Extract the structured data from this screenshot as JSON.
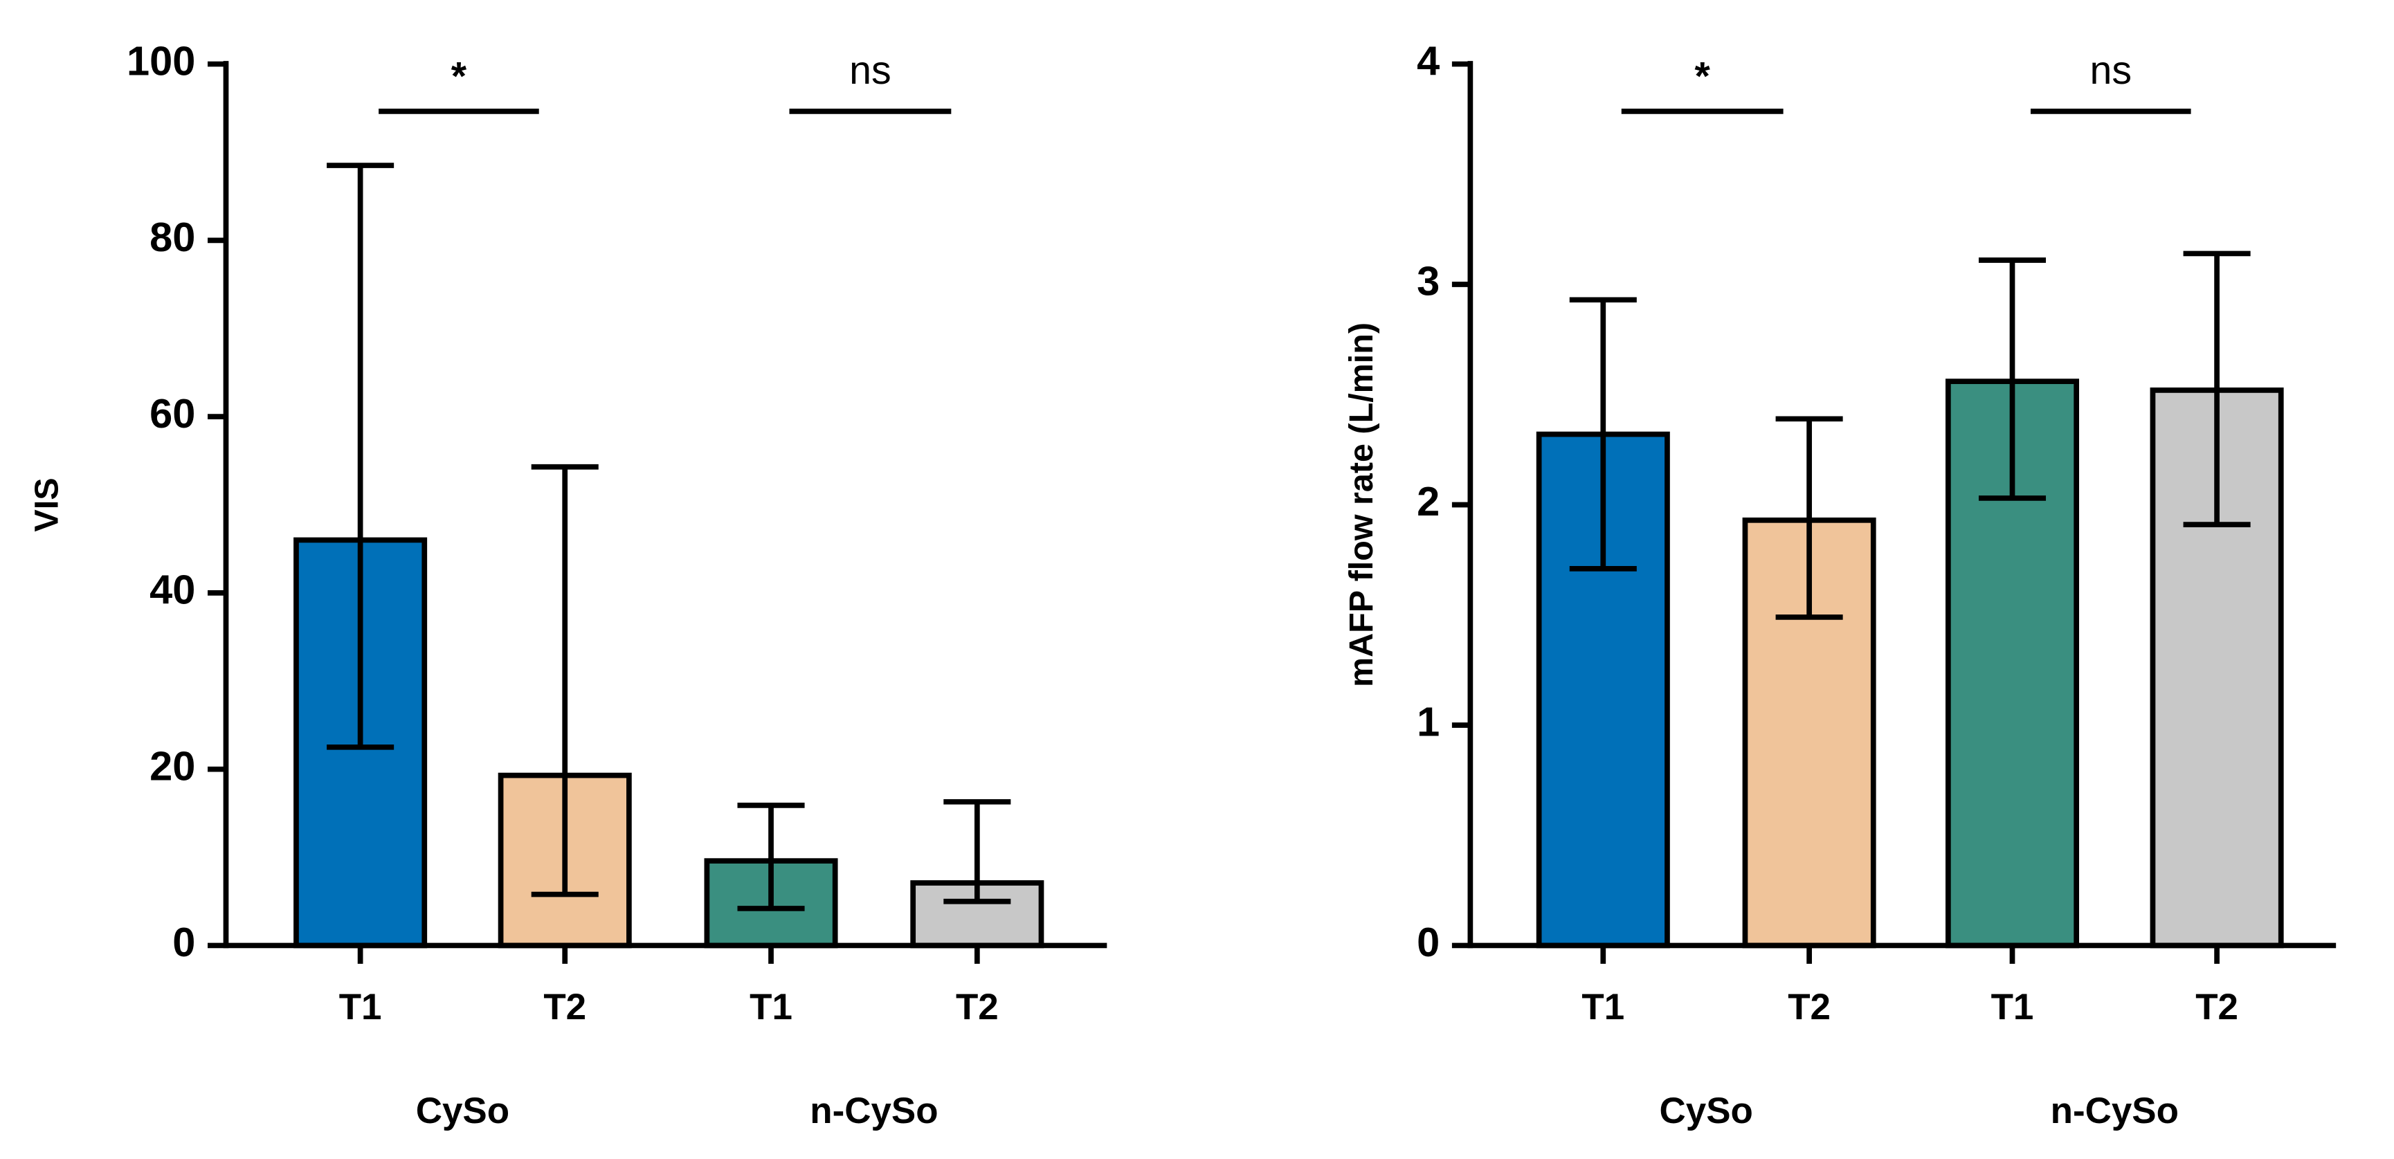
{
  "chart_data": [
    {
      "type": "bar",
      "ylabel": "VIS",
      "categories": [
        "T1",
        "T2",
        "T1",
        "T2"
      ],
      "groups": [
        "CySo",
        "n-CySo"
      ],
      "values": [
        46,
        19.3,
        9.6,
        7.1
      ],
      "lower": [
        22.5,
        5.8,
        4.2,
        5.0
      ],
      "upper": [
        88.5,
        54.3,
        15.9,
        16.3
      ],
      "colors": [
        "#0070b8",
        "#f0c49a",
        "#3a8f80",
        "#c8c8c8"
      ],
      "annotations": [
        "*",
        "ns"
      ],
      "ylim": [
        0,
        100
      ],
      "yticks": [
        0,
        20,
        40,
        60,
        80,
        100
      ]
    },
    {
      "type": "bar",
      "ylabel": "mAFP flow rate (L/min)",
      "categories": [
        "T1",
        "T2",
        "T1",
        "T2"
      ],
      "groups": [
        "CySo",
        "n-CySo"
      ],
      "values": [
        2.32,
        1.93,
        2.56,
        2.52
      ],
      "lower": [
        1.71,
        1.49,
        2.03,
        1.91
      ],
      "upper": [
        2.93,
        2.39,
        3.11,
        3.14
      ],
      "colors": [
        "#0070b8",
        "#f0c49a",
        "#3a8f80",
        "#c8c8c8"
      ],
      "annotations": [
        "*",
        "ns"
      ],
      "ylim": [
        0,
        4
      ],
      "yticks": [
        0,
        1,
        2,
        3,
        4
      ]
    }
  ]
}
